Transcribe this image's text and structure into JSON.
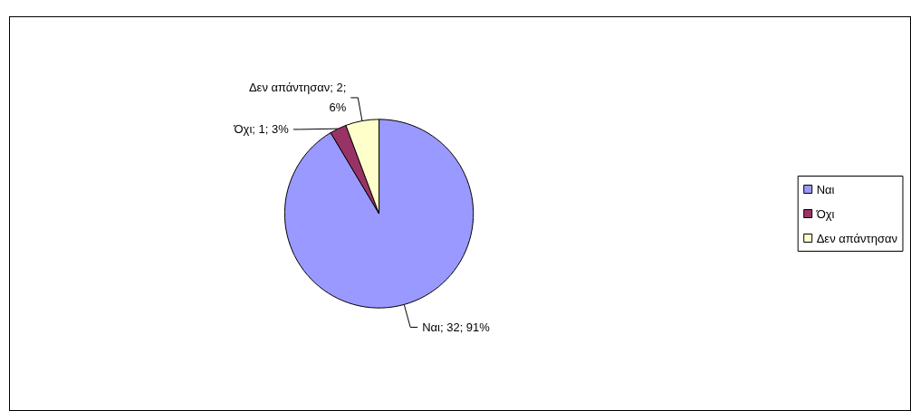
{
  "chart_data": {
    "type": "pie",
    "categories": [
      "Ναι",
      "Όχι",
      "Δεν απάντησαν"
    ],
    "values": [
      32,
      1,
      2
    ],
    "colors": [
      "#9999ff",
      "#993366",
      "#ffffcc"
    ],
    "value_labels": [
      "Ναι; 32; 91%",
      "Όχι; 1; 3%",
      "Δεν απάντησαν; 2;\n6%"
    ],
    "legend": "right"
  }
}
